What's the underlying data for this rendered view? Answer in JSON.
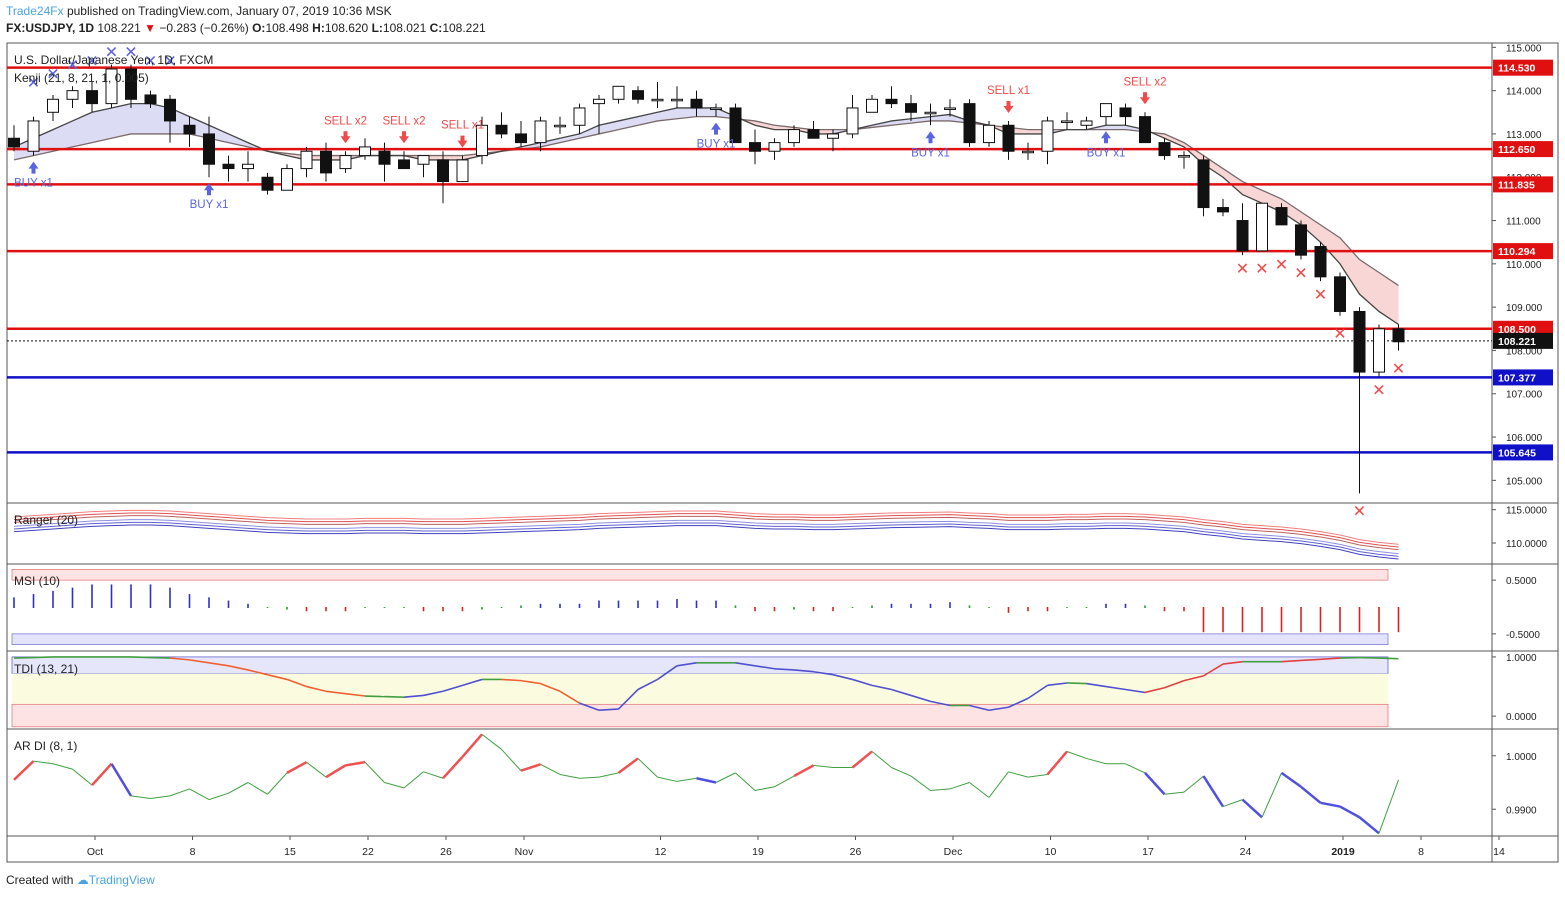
{
  "header": {
    "author": "Trade24Fx",
    "published_text": "published on TradingView.com, January 07, 2019 10:36 MSK",
    "symbol_line": "FX:USDJPY, 1D",
    "last": "108.221",
    "change": "−0.283 (−0.26%)",
    "o_label": "O:",
    "o": "108.498",
    "h_label": "H:",
    "h": "108.620",
    "l_label": "L:",
    "l": "108.021",
    "c_label": "C:",
    "c": "108.221"
  },
  "footer": {
    "created_with": "Created with",
    "brand": "TradingView"
  },
  "colors": {
    "red": "#e01010",
    "blue": "#1010c8",
    "candle_dark": "#111111",
    "ema_fill_up": "#dcdcf5",
    "ema_fill_down": "#f9d6d6",
    "buy": "#5a64e0",
    "sell": "#f04a4a"
  },
  "chart_data": {
    "type": "candlestick",
    "title": "U.S. Dollar/Japanese Yen, 1D, FXCM",
    "indicator_label": "Kenji (21, 8, 21, 1, 0.005)",
    "ylim": [
      104.5,
      115.1
    ],
    "y_ticks": [
      "115.000",
      "114.000",
      "113.000",
      "112.000",
      "111.000",
      "110.000",
      "109.000",
      "108.000",
      "107.000",
      "106.000",
      "105.000"
    ],
    "x_labels": [
      {
        "i": 4,
        "text": "Oct"
      },
      {
        "i": 9,
        "text": "8"
      },
      {
        "i": 14,
        "text": "15"
      },
      {
        "i": 18,
        "text": "22"
      },
      {
        "i": 22,
        "text": "26"
      },
      {
        "i": 26,
        "text": "Nov"
      },
      {
        "i": 33,
        "text": "12"
      },
      {
        "i": 38,
        "text": "19"
      },
      {
        "i": 43,
        "text": "26"
      },
      {
        "i": 48,
        "text": "Dec"
      },
      {
        "i": 53,
        "text": "10"
      },
      {
        "i": 58,
        "text": "17"
      },
      {
        "i": 63,
        "text": "24"
      },
      {
        "i": 68,
        "text": "2019"
      },
      {
        "i": 72,
        "text": "8"
      },
      {
        "i": 76,
        "text": "14"
      }
    ],
    "candles": [
      [
        112.9,
        113.2,
        112.6,
        112.7
      ],
      [
        112.6,
        113.4,
        112.5,
        113.3
      ],
      [
        113.5,
        113.9,
        113.3,
        113.8
      ],
      [
        113.8,
        114.1,
        113.6,
        114.0
      ],
      [
        114.0,
        114.2,
        113.5,
        113.7
      ],
      [
        113.7,
        114.6,
        113.6,
        114.5
      ],
      [
        114.5,
        114.6,
        113.6,
        113.8
      ],
      [
        113.9,
        114.0,
        113.6,
        113.7
      ],
      [
        113.8,
        113.9,
        112.8,
        113.3
      ],
      [
        113.2,
        113.4,
        112.7,
        113.0
      ],
      [
        113.0,
        113.4,
        112.0,
        112.3
      ],
      [
        112.3,
        112.5,
        111.9,
        112.2
      ],
      [
        112.2,
        112.6,
        111.9,
        112.3
      ],
      [
        112.0,
        112.1,
        111.6,
        111.7
      ],
      [
        111.7,
        112.3,
        111.7,
        112.2
      ],
      [
        112.2,
        112.7,
        112.0,
        112.6
      ],
      [
        112.6,
        112.8,
        111.9,
        112.1
      ],
      [
        112.2,
        112.6,
        112.1,
        112.5
      ],
      [
        112.5,
        112.9,
        112.4,
        112.7
      ],
      [
        112.6,
        112.8,
        111.9,
        112.3
      ],
      [
        112.4,
        112.6,
        112.2,
        112.2
      ],
      [
        112.3,
        112.5,
        112.0,
        112.5
      ],
      [
        112.4,
        112.6,
        111.4,
        111.9
      ],
      [
        111.9,
        112.5,
        111.9,
        112.4
      ],
      [
        112.5,
        113.4,
        112.3,
        113.2
      ],
      [
        113.2,
        113.5,
        112.9,
        113.0
      ],
      [
        113.0,
        113.3,
        112.7,
        112.8
      ],
      [
        112.8,
        113.4,
        112.6,
        113.3
      ],
      [
        113.2,
        113.4,
        113.0,
        113.2
      ],
      [
        113.2,
        113.7,
        113.0,
        113.6
      ],
      [
        113.7,
        113.9,
        113.0,
        113.8
      ],
      [
        113.8,
        114.1,
        113.7,
        114.1
      ],
      [
        114.0,
        114.1,
        113.7,
        113.8
      ],
      [
        113.8,
        114.2,
        113.6,
        113.8
      ],
      [
        113.8,
        114.1,
        113.6,
        113.8
      ],
      [
        113.8,
        114.0,
        113.4,
        113.6
      ],
      [
        113.6,
        113.7,
        113.4,
        113.6
      ],
      [
        113.6,
        113.7,
        112.8,
        112.8
      ],
      [
        112.8,
        113.1,
        112.3,
        112.6
      ],
      [
        112.6,
        112.9,
        112.4,
        112.8
      ],
      [
        112.8,
        113.2,
        112.7,
        113.1
      ],
      [
        113.1,
        113.3,
        112.9,
        112.9
      ],
      [
        112.9,
        113.1,
        112.6,
        113.0
      ],
      [
        113.0,
        113.9,
        112.9,
        113.6
      ],
      [
        113.5,
        113.9,
        113.5,
        113.8
      ],
      [
        113.8,
        114.1,
        113.6,
        113.7
      ],
      [
        113.7,
        113.9,
        113.3,
        113.5
      ],
      [
        113.5,
        113.7,
        113.2,
        113.5
      ],
      [
        113.6,
        113.8,
        113.4,
        113.6
      ],
      [
        113.7,
        113.8,
        112.7,
        112.8
      ],
      [
        112.8,
        113.3,
        112.7,
        113.2
      ],
      [
        113.2,
        113.3,
        112.4,
        112.6
      ],
      [
        112.6,
        112.8,
        112.4,
        112.6
      ],
      [
        112.6,
        113.4,
        112.3,
        113.3
      ],
      [
        113.3,
        113.5,
        113.1,
        113.3
      ],
      [
        113.2,
        113.4,
        113.1,
        113.3
      ],
      [
        113.4,
        113.7,
        113.2,
        113.7
      ],
      [
        113.6,
        113.7,
        113.2,
        113.4
      ],
      [
        113.4,
        113.5,
        112.8,
        112.8
      ],
      [
        112.8,
        112.9,
        112.4,
        112.5
      ],
      [
        112.5,
        112.6,
        112.2,
        112.5
      ],
      [
        112.4,
        112.5,
        111.1,
        111.3
      ],
      [
        111.3,
        111.5,
        111.1,
        111.2
      ],
      [
        111.0,
        111.4,
        110.2,
        110.3
      ],
      [
        110.3,
        111.4,
        110.3,
        111.4
      ],
      [
        111.3,
        111.4,
        110.9,
        110.9
      ],
      [
        110.9,
        111.0,
        110.1,
        110.2
      ],
      [
        110.4,
        110.5,
        109.6,
        109.7
      ],
      [
        109.7,
        109.8,
        108.8,
        108.9
      ],
      [
        108.9,
        109.0,
        104.7,
        107.5
      ],
      [
        107.5,
        108.6,
        107.4,
        108.5
      ],
      [
        108.5,
        108.6,
        108.0,
        108.2
      ]
    ],
    "ema_fast": [
      112.7,
      112.9,
      113.1,
      113.3,
      113.5,
      113.6,
      113.7,
      113.7,
      113.6,
      113.4,
      113.2,
      113.0,
      112.8,
      112.6,
      112.5,
      112.4,
      112.4,
      112.4,
      112.5,
      112.5,
      112.5,
      112.4,
      112.4,
      112.4,
      112.5,
      112.6,
      112.7,
      112.8,
      112.9,
      113.0,
      113.2,
      113.3,
      113.4,
      113.5,
      113.6,
      113.6,
      113.6,
      113.4,
      113.2,
      113.1,
      113.1,
      113.0,
      113.0,
      113.1,
      113.2,
      113.3,
      113.35,
      113.4,
      113.45,
      113.3,
      113.2,
      113.0,
      113.0,
      113.0,
      113.1,
      113.1,
      113.2,
      113.2,
      113.1,
      112.9,
      112.7,
      112.3,
      112.0,
      111.6,
      111.4,
      111.2,
      110.9,
      110.5,
      110.0,
      109.3,
      108.9,
      108.6
    ],
    "ema_slow": [
      112.4,
      112.5,
      112.6,
      112.7,
      112.8,
      112.9,
      113.0,
      113.0,
      113.0,
      113.0,
      112.9,
      112.8,
      112.7,
      112.6,
      112.55,
      112.5,
      112.5,
      112.5,
      112.5,
      112.5,
      112.5,
      112.5,
      112.5,
      112.5,
      112.55,
      112.6,
      112.65,
      112.7,
      112.8,
      112.9,
      113.0,
      113.1,
      113.2,
      113.3,
      113.35,
      113.4,
      113.4,
      113.35,
      113.3,
      113.2,
      113.15,
      113.1,
      113.1,
      113.1,
      113.15,
      113.2,
      113.25,
      113.3,
      113.3,
      113.25,
      113.2,
      113.15,
      113.1,
      113.1,
      113.1,
      113.1,
      113.1,
      113.1,
      113.05,
      113.0,
      112.8,
      112.5,
      112.2,
      111.9,
      111.7,
      111.5,
      111.2,
      110.9,
      110.6,
      110.1,
      109.8,
      109.5
    ],
    "levels": [
      {
        "value": 114.53,
        "label": "114.530",
        "color": "#e01010"
      },
      {
        "value": 112.65,
        "label": "112.650",
        "color": "#e01010"
      },
      {
        "value": 111.835,
        "label": "111.835",
        "color": "#e01010"
      },
      {
        "value": 110.294,
        "label": "110.294",
        "color": "#e01010"
      },
      {
        "value": 108.5,
        "label": "108.500",
        "color": "#e01010"
      },
      {
        "value": 107.377,
        "label": "107.377",
        "color": "#1010c8"
      },
      {
        "value": 105.645,
        "label": "105.645",
        "color": "#1010c8"
      }
    ],
    "last_price": {
      "value": 108.221,
      "label": "108.221"
    },
    "signals": [
      {
        "i": 1,
        "type": "buy",
        "text": "BUY x1"
      },
      {
        "i": 10,
        "type": "buy",
        "text": "BUY x1"
      },
      {
        "i": 17,
        "type": "sell",
        "text": "SELL x2"
      },
      {
        "i": 20,
        "type": "sell",
        "text": "SELL x2"
      },
      {
        "i": 23,
        "type": "sell",
        "text": "SELL x1"
      },
      {
        "i": 36,
        "type": "buy",
        "text": "BUY x1"
      },
      {
        "i": 47,
        "type": "buy",
        "text": "BUY x1"
      },
      {
        "i": 51,
        "type": "sell",
        "text": "SELL x1"
      },
      {
        "i": 56,
        "type": "buy",
        "text": "BUY x1"
      },
      {
        "i": 58,
        "type": "sell",
        "text": "SELL x2"
      }
    ],
    "x_marks": [
      {
        "i": 1,
        "v": 114.2,
        "color": "#5a64e0"
      },
      {
        "i": 2,
        "v": 114.4,
        "color": "#5a64e0"
      },
      {
        "i": 3,
        "v": 114.6,
        "color": "#5a64e0"
      },
      {
        "i": 4,
        "v": 114.7,
        "color": "#5a64e0"
      },
      {
        "i": 5,
        "v": 114.9,
        "color": "#5a64e0"
      },
      {
        "i": 6,
        "v": 114.9,
        "color": "#5a64e0"
      },
      {
        "i": 7,
        "v": 114.7,
        "color": "#5a64e0"
      },
      {
        "i": 8,
        "v": 114.7,
        "color": "#5a64e0"
      },
      {
        "i": 63,
        "v": 109.9,
        "color": "#f04a4a"
      },
      {
        "i": 64,
        "v": 109.9,
        "color": "#f04a4a"
      },
      {
        "i": 65,
        "v": 110.0,
        "color": "#f04a4a"
      },
      {
        "i": 66,
        "v": 109.8,
        "color": "#f04a4a"
      },
      {
        "i": 67,
        "v": 109.3,
        "color": "#f04a4a"
      },
      {
        "i": 68,
        "v": 108.4,
        "color": "#f04a4a"
      },
      {
        "i": 69,
        "v": 104.3,
        "color": "#f04a4a"
      },
      {
        "i": 70,
        "v": 107.1,
        "color": "#f04a4a"
      },
      {
        "i": 71,
        "v": 107.6,
        "color": "#f04a4a"
      }
    ],
    "panels": {
      "ranger": {
        "label": "Ranger (20)",
        "y_ticks": [
          "115.0000",
          "110.0000"
        ],
        "ylim": [
          107.0,
          116.0
        ]
      },
      "msi": {
        "label": "MSI (10)",
        "y_ticks": [
          "0.5000",
          "-0.5000"
        ],
        "ylim": [
          -0.8,
          0.8
        ]
      },
      "tdi": {
        "label": "TDI (13, 21)",
        "y_ticks": [
          "1.0000",
          "0.0000"
        ],
        "ylim": [
          -0.2,
          1.1
        ],
        "values": [
          0.98,
          0.99,
          1.0,
          1.0,
          1.0,
          1.0,
          1.0,
          0.99,
          0.98,
          0.95,
          0.9,
          0.85,
          0.78,
          0.7,
          0.62,
          0.5,
          0.42,
          0.38,
          0.34,
          0.33,
          0.32,
          0.35,
          0.42,
          0.52,
          0.62,
          0.62,
          0.6,
          0.55,
          0.42,
          0.22,
          0.1,
          0.12,
          0.45,
          0.62,
          0.85,
          0.9,
          0.9,
          0.9,
          0.85,
          0.8,
          0.78,
          0.75,
          0.7,
          0.62,
          0.52,
          0.45,
          0.35,
          0.25,
          0.18,
          0.18,
          0.1,
          0.15,
          0.3,
          0.52,
          0.56,
          0.55,
          0.5,
          0.45,
          0.4,
          0.48,
          0.6,
          0.68,
          0.88,
          0.92,
          0.92,
          0.92,
          0.94,
          0.96,
          0.98,
          0.99,
          0.98,
          0.97
        ]
      },
      "ardi": {
        "label": "AR DI (8, 1)",
        "y_ticks": [
          "1.0000",
          "0.9900"
        ],
        "ylim": [
          0.985,
          1.005
        ],
        "values": [
          0.9955,
          0.999,
          0.9985,
          0.9975,
          0.9945,
          0.9985,
          0.9925,
          0.992,
          0.9925,
          0.9938,
          0.9918,
          0.993,
          0.995,
          0.9928,
          0.9968,
          0.9988,
          0.996,
          0.9982,
          0.9988,
          0.995,
          0.994,
          0.997,
          0.9958,
          0.9998,
          1.004,
          1.0012,
          0.9972,
          0.9984,
          0.9965,
          0.9958,
          0.996,
          0.9968,
          0.9995,
          0.996,
          0.9952,
          0.9958,
          0.995,
          0.9968,
          0.9935,
          0.9942,
          0.9962,
          0.9982,
          0.9978,
          0.9978,
          1.0008,
          0.9978,
          0.9962,
          0.9935,
          0.9938,
          0.995,
          0.9922,
          0.997,
          0.996,
          0.9965,
          1.0008,
          0.9995,
          0.9985,
          0.9985,
          0.9968,
          0.9928,
          0.9932,
          0.9962,
          0.9905,
          0.9918,
          0.9885,
          0.9968,
          0.9942,
          0.9912,
          0.9905,
          0.9885,
          0.9855,
          0.9955
        ]
      }
    }
  }
}
